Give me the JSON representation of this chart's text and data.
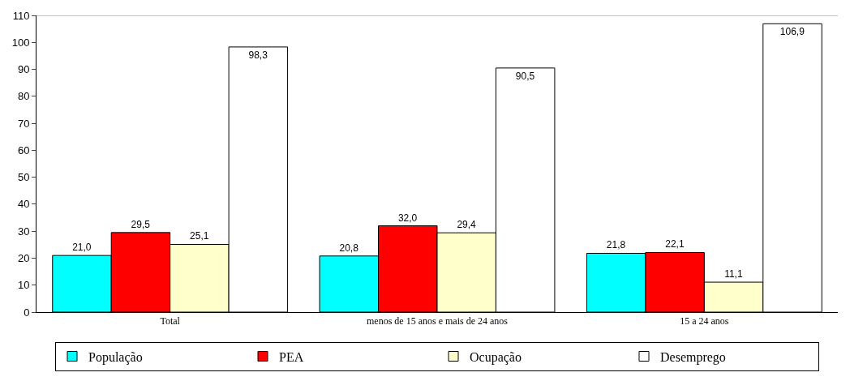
{
  "chart_data": {
    "type": "bar",
    "categories": [
      "Total",
      "menos de 15 anos e mais de 24 anos",
      "15 a 24 anos"
    ],
    "series": [
      {
        "name": "População",
        "color": "#00ffff",
        "values": [
          21.0,
          20.8,
          21.8
        ],
        "value_labels": [
          "21,0",
          "20,8",
          "21,8"
        ]
      },
      {
        "name": "PEA",
        "color": "#ff0000",
        "values": [
          29.5,
          32.0,
          22.1
        ],
        "value_labels": [
          "29,5",
          "32,0",
          "22,1"
        ]
      },
      {
        "name": "Ocupação",
        "color": "#ffffcc",
        "values": [
          25.1,
          29.4,
          11.1
        ],
        "value_labels": [
          "25,1",
          "29,4",
          "11,1"
        ]
      },
      {
        "name": "Desemprego",
        "color": "#ffffff",
        "values": [
          98.3,
          90.5,
          106.9
        ],
        "value_labels": [
          "98,3",
          "90,5",
          "106,9"
        ]
      }
    ],
    "ylim": [
      0,
      110
    ],
    "yticks": [
      0,
      10,
      20,
      30,
      40,
      50,
      60,
      70,
      80,
      90,
      100,
      110
    ],
    "legend": "bottom"
  }
}
